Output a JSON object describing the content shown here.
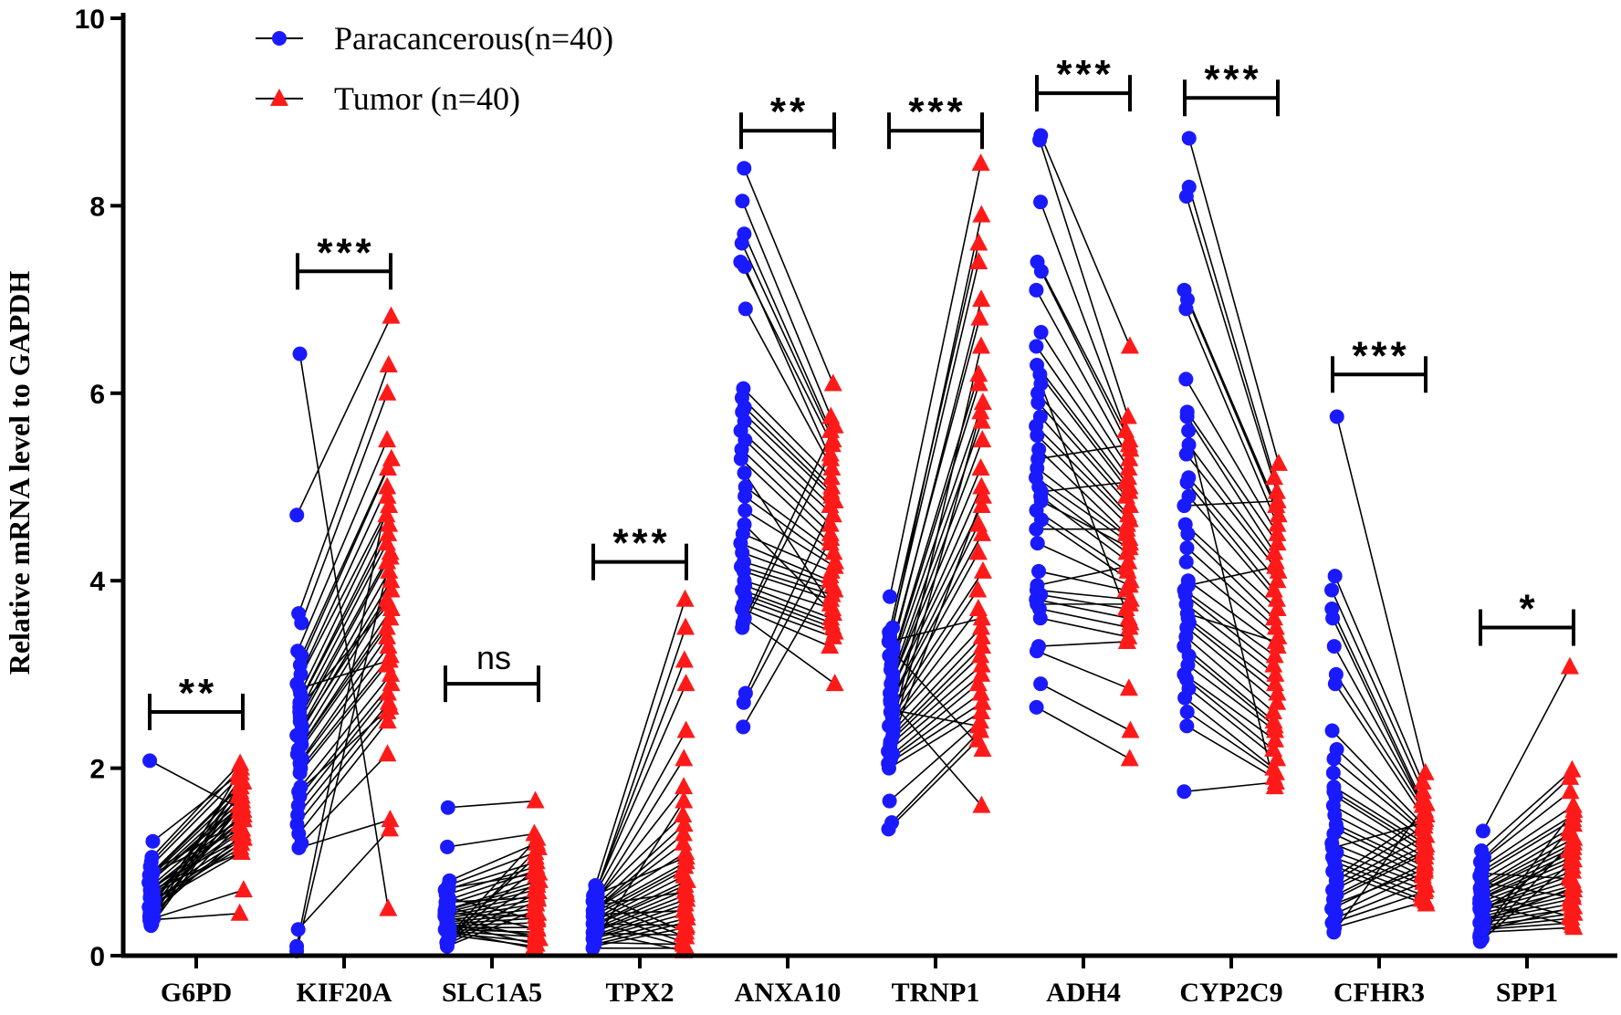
{
  "chart_data": {
    "type": "paired-scatter",
    "title": "",
    "xlabel": "",
    "ylabel": "Relative mRNA level to GAPDH",
    "ylim": [
      0,
      10
    ],
    "yticks": [
      "0",
      "2",
      "4",
      "6",
      "8",
      "10"
    ],
    "categories": [
      "G6PD",
      "KIF20A",
      "SLC1A5",
      "TPX2",
      "ANXA10",
      "TRNP1",
      "ADH4",
      "CYP2C9",
      "CFHR3",
      "SPP1"
    ],
    "legend_position": "top-left",
    "series": [
      {
        "name": "Paracancerous(n=40)",
        "marker": "circle",
        "color": "#1a1aff"
      },
      {
        "name": "Tumor (n=40)",
        "marker": "triangle",
        "color": "#ff1a1a"
      }
    ],
    "genes": [
      {
        "name": "G6PD",
        "significance": "**",
        "bracket_y": 2.6,
        "paracancerous": [
          2.08,
          1.22,
          1.05,
          1.0,
          0.95,
          0.9,
          0.88,
          0.85,
          0.82,
          0.8,
          0.78,
          0.75,
          0.72,
          0.7,
          0.68,
          0.66,
          0.64,
          0.62,
          0.6,
          0.58,
          0.56,
          0.54,
          0.52,
          0.5,
          0.48,
          0.46,
          0.44,
          0.42,
          0.4,
          0.38,
          0.36,
          0.34,
          0.33,
          0.32,
          0.9,
          0.86,
          0.74,
          0.6,
          0.5,
          0.7
        ],
        "tumor": [
          1.55,
          1.95,
          2.05,
          2.0,
          1.9,
          1.85,
          1.8,
          1.75,
          1.7,
          1.65,
          1.6,
          1.55,
          1.5,
          1.45,
          1.4,
          1.35,
          1.3,
          1.25,
          1.2,
          1.15,
          1.1,
          1.9,
          1.8,
          1.7,
          1.6,
          1.5,
          1.4,
          1.3,
          0.7,
          0.45,
          1.95,
          1.85,
          1.75,
          1.65,
          1.45,
          1.35,
          1.25,
          1.6,
          1.2,
          1.1
        ]
      },
      {
        "name": "KIF20A",
        "significance": "***",
        "bracket_y": 7.3,
        "paracancerous": [
          6.42,
          4.7,
          3.65,
          3.55,
          3.25,
          3.2,
          3.1,
          3.0,
          2.9,
          2.8,
          2.75,
          2.7,
          2.6,
          2.55,
          2.5,
          2.45,
          2.4,
          2.35,
          2.3,
          2.25,
          2.2,
          2.15,
          2.1,
          2.05,
          2.0,
          1.95,
          1.8,
          1.7,
          1.6,
          1.5,
          1.4,
          1.3,
          1.2,
          1.15,
          0.28,
          0.1,
          0.05,
          2.65,
          2.85,
          1.75
        ],
        "tumor": [
          0.5,
          6.82,
          6.3,
          6.0,
          5.5,
          5.3,
          5.2,
          5.0,
          4.8,
          4.7,
          4.6,
          4.5,
          4.4,
          4.3,
          4.2,
          4.1,
          4.0,
          3.9,
          3.8,
          3.7,
          3.6,
          3.5,
          3.4,
          3.3,
          3.2,
          3.1,
          3.0,
          2.9,
          2.8,
          2.7,
          2.6,
          2.5,
          2.15,
          1.45,
          1.35,
          4.9,
          4.25,
          3.75,
          3.15,
          2.65
        ]
      },
      {
        "name": "SLC1A5",
        "significance": "ns",
        "bracket_y": 2.9,
        "paracancerous": [
          1.58,
          1.16,
          0.8,
          0.75,
          0.7,
          0.65,
          0.6,
          0.55,
          0.5,
          0.48,
          0.46,
          0.44,
          0.42,
          0.4,
          0.38,
          0.36,
          0.34,
          0.32,
          0.3,
          0.28,
          0.26,
          0.24,
          0.22,
          0.2,
          0.18,
          0.16,
          0.14,
          0.12,
          0.1,
          0.62,
          0.52,
          0.41,
          0.35,
          0.27,
          0.21,
          0.15,
          0.72,
          0.57,
          0.45,
          0.33
        ],
        "tumor": [
          1.65,
          1.3,
          1.2,
          1.1,
          1.0,
          0.95,
          0.9,
          0.85,
          0.8,
          0.75,
          0.7,
          0.65,
          0.6,
          0.55,
          0.5,
          0.45,
          0.4,
          0.35,
          0.3,
          0.25,
          0.2,
          0.15,
          0.1,
          1.05,
          0.92,
          0.78,
          0.68,
          0.58,
          0.48,
          0.38,
          0.28,
          0.18,
          0.12,
          0.08,
          1.25,
          1.15,
          0.88,
          0.62,
          0.42,
          0.22
        ]
      },
      {
        "name": "TPX2",
        "significance": "***",
        "bracket_y": 4.2,
        "paracancerous": [
          0.75,
          0.72,
          0.7,
          0.68,
          0.65,
          0.62,
          0.6,
          0.58,
          0.55,
          0.52,
          0.5,
          0.48,
          0.45,
          0.42,
          0.4,
          0.38,
          0.35,
          0.32,
          0.3,
          0.28,
          0.25,
          0.22,
          0.2,
          0.18,
          0.15,
          0.12,
          0.1,
          0.66,
          0.56,
          0.46,
          0.36,
          0.26,
          0.16,
          0.64,
          0.54,
          0.44,
          0.34,
          0.24,
          0.14,
          0.08
        ],
        "tumor": [
          3.8,
          3.5,
          3.15,
          2.9,
          2.4,
          2.1,
          1.8,
          1.5,
          1.4,
          1.3,
          1.2,
          1.1,
          1.0,
          0.95,
          0.9,
          0.85,
          0.8,
          0.75,
          0.7,
          0.65,
          0.6,
          0.55,
          0.5,
          0.45,
          0.4,
          0.35,
          0.3,
          0.25,
          0.2,
          0.15,
          0.1,
          0.05,
          1.65,
          1.05,
          0.68,
          0.48,
          0.32,
          0.22,
          0.12,
          0.08
        ]
      },
      {
        "name": "ANXA10",
        "significance": "**",
        "bracket_y": 8.8,
        "paracancerous": [
          8.4,
          8.05,
          7.7,
          7.6,
          7.4,
          7.35,
          6.9,
          6.05,
          5.95,
          5.85,
          5.8,
          5.7,
          5.6,
          5.5,
          5.4,
          5.3,
          5.0,
          4.9,
          4.75,
          4.5,
          4.4,
          4.3,
          4.2,
          4.15,
          4.1,
          4.0,
          3.95,
          3.9,
          3.85,
          3.8,
          3.75,
          3.7,
          3.6,
          3.55,
          3.5,
          2.8,
          2.7,
          2.44,
          5.15,
          4.6
        ],
        "tumor": [
          6.1,
          5.75,
          5.6,
          5.5,
          5.45,
          5.3,
          5.2,
          5.1,
          5.0,
          4.95,
          4.9,
          4.8,
          4.7,
          4.6,
          4.5,
          4.4,
          4.3,
          4.2,
          4.15,
          4.1,
          4.0,
          3.95,
          3.9,
          3.85,
          3.8,
          3.7,
          3.6,
          3.55,
          3.5,
          3.45,
          3.4,
          3.3,
          2.9,
          5.65,
          5.35,
          4.85,
          4.45,
          4.05,
          3.75,
          3.65
        ]
      },
      {
        "name": "TRNP1",
        "significance": "***",
        "bracket_y": 8.8,
        "paracancerous": [
          3.83,
          3.5,
          3.45,
          3.4,
          3.3,
          3.2,
          3.15,
          3.1,
          3.05,
          3.0,
          2.95,
          2.9,
          2.85,
          2.8,
          2.75,
          2.7,
          2.65,
          2.6,
          2.55,
          2.5,
          2.45,
          2.4,
          2.35,
          2.3,
          2.25,
          2.2,
          2.15,
          2.1,
          2.05,
          2.0,
          1.65,
          1.42,
          1.35,
          3.25,
          2.72,
          2.48,
          2.28,
          2.18,
          3.35,
          2.62
        ],
        "tumor": [
          8.45,
          7.9,
          7.6,
          7.4,
          7.0,
          6.8,
          6.2,
          6.1,
          5.9,
          5.7,
          5.5,
          5.2,
          5.0,
          4.8,
          4.6,
          4.5,
          4.3,
          4.1,
          3.9,
          3.7,
          3.5,
          3.4,
          3.3,
          3.2,
          3.1,
          3.0,
          2.9,
          2.8,
          2.7,
          2.6,
          2.5,
          2.4,
          2.3,
          2.2,
          1.6,
          6.5,
          5.8,
          4.9,
          3.6,
          2.45
        ]
      },
      {
        "name": "ADH4",
        "significance": "***",
        "bracket_y": 9.2,
        "paracancerous": [
          8.75,
          8.7,
          8.04,
          7.4,
          7.3,
          7.1,
          6.65,
          6.5,
          6.3,
          6.2,
          6.0,
          5.9,
          5.75,
          5.55,
          5.4,
          5.2,
          5.1,
          5.0,
          4.9,
          4.75,
          4.65,
          4.4,
          4.1,
          3.9,
          3.85,
          3.8,
          3.7,
          3.6,
          3.3,
          3.25,
          2.9,
          2.65,
          5.3,
          4.95,
          4.55,
          3.95,
          3.75,
          6.1,
          5.65,
          4.85
        ],
        "tumor": [
          6.5,
          5.75,
          5.6,
          5.5,
          5.4,
          5.3,
          5.2,
          5.1,
          5.0,
          4.95,
          4.9,
          4.8,
          4.7,
          4.6,
          4.5,
          4.45,
          4.4,
          4.3,
          4.2,
          4.1,
          4.0,
          3.95,
          3.9,
          3.8,
          3.7,
          3.6,
          3.5,
          3.4,
          3.35,
          2.85,
          2.4,
          2.1,
          5.45,
          5.05,
          4.55,
          4.15,
          3.75,
          3.55,
          4.65,
          4.35
        ]
      },
      {
        "name": "CYP2C9",
        "significance": "***",
        "bracket_y": 9.15,
        "paracancerous": [
          8.72,
          8.2,
          8.1,
          7.1,
          7.0,
          6.9,
          6.15,
          5.8,
          5.75,
          5.45,
          5.35,
          5.1,
          5.05,
          4.9,
          4.6,
          4.5,
          4.35,
          4.2,
          4.0,
          3.9,
          3.85,
          3.75,
          3.6,
          3.55,
          3.5,
          3.4,
          3.3,
          3.1,
          3.0,
          2.95,
          2.85,
          2.75,
          2.45,
          1.75,
          5.6,
          4.8,
          3.95,
          3.65,
          3.2,
          2.6
        ],
        "tumor": [
          5.25,
          5.1,
          4.95,
          4.8,
          4.7,
          4.6,
          4.5,
          4.4,
          4.3,
          4.2,
          4.1,
          4.0,
          3.9,
          3.8,
          3.7,
          3.6,
          3.5,
          3.4,
          3.3,
          3.2,
          3.1,
          3.0,
          2.9,
          2.8,
          2.7,
          2.6,
          2.5,
          2.4,
          2.3,
          2.2,
          2.1,
          2.0,
          1.9,
          1.85,
          1.8,
          4.85,
          4.15,
          3.35,
          2.45,
          1.95
        ]
      },
      {
        "name": "CFHR3",
        "significance": "***",
        "bracket_y": 6.2,
        "paracancerous": [
          5.75,
          4.05,
          3.9,
          3.7,
          3.6,
          3.3,
          3.0,
          2.9,
          2.4,
          2.2,
          2.1,
          1.95,
          1.8,
          1.75,
          1.7,
          1.6,
          1.5,
          1.4,
          1.35,
          1.3,
          1.2,
          1.1,
          1.05,
          1.0,
          0.95,
          0.9,
          0.85,
          0.8,
          0.75,
          0.7,
          0.6,
          0.5,
          0.45,
          0.4,
          0.35,
          0.3,
          0.25,
          1.15,
          0.65,
          0.55
        ],
        "tumor": [
          1.95,
          1.85,
          1.75,
          1.65,
          1.6,
          1.55,
          1.5,
          1.45,
          1.4,
          1.35,
          1.3,
          1.25,
          1.2,
          1.15,
          1.1,
          1.05,
          1.0,
          0.95,
          0.9,
          0.85,
          0.8,
          0.75,
          0.7,
          0.65,
          0.6,
          0.55,
          1.48,
          1.38,
          1.28,
          1.18,
          1.08,
          0.98,
          0.88,
          0.78,
          0.68,
          0.58,
          1.62,
          1.42,
          1.12,
          0.92
        ]
      },
      {
        "name": "SPP1",
        "significance": "*",
        "bracket_y": 3.5,
        "paracancerous": [
          1.33,
          1.12,
          1.05,
          1.0,
          0.95,
          0.9,
          0.85,
          0.8,
          0.75,
          0.72,
          0.7,
          0.68,
          0.65,
          0.62,
          0.6,
          0.58,
          0.55,
          0.52,
          0.5,
          0.48,
          0.45,
          0.42,
          0.4,
          0.38,
          0.35,
          0.32,
          0.3,
          0.28,
          0.25,
          0.22,
          0.2,
          0.18,
          0.15,
          0.88,
          0.78,
          0.66,
          0.56,
          0.46,
          0.36,
          0.26
        ],
        "tumor": [
          3.08,
          1.98,
          1.9,
          1.75,
          1.6,
          1.5,
          1.45,
          1.35,
          1.3,
          1.25,
          1.2,
          1.15,
          1.1,
          1.05,
          1.0,
          0.95,
          0.9,
          0.85,
          0.8,
          0.75,
          0.7,
          0.65,
          0.6,
          0.55,
          0.5,
          0.45,
          0.4,
          0.35,
          0.3,
          1.55,
          1.4,
          1.22,
          1.02,
          0.82,
          0.62,
          0.42,
          0.32,
          1.12,
          0.72,
          0.52
        ]
      }
    ]
  }
}
